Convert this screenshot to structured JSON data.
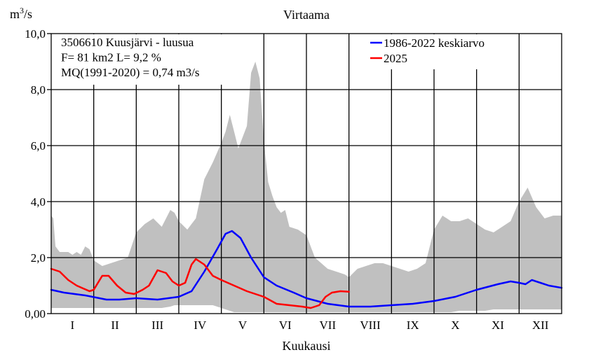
{
  "chart_data": {
    "type": "line",
    "title": "Virtaama",
    "ylabel": "m",
    "ylabel_sup": "3",
    "ylabel_tail": "/s",
    "xlabel": "Kuukausi",
    "ylim": [
      0,
      10
    ],
    "xlim": [
      0,
      12
    ],
    "yticks": [
      "0,00",
      "2,0",
      "4,0",
      "6,0",
      "8,0",
      "10,0"
    ],
    "ytick_values": [
      0,
      2,
      4,
      6,
      8,
      10
    ],
    "months": [
      "I",
      "II",
      "III",
      "IV",
      "V",
      "VI",
      "VII",
      "VIII",
      "IX",
      "X",
      "XI",
      "XII"
    ],
    "grid": true,
    "legend_position": "top-right",
    "info_lines": [
      "3506610 Kuusjärvi - luusua",
      "F=     81 km2 L=  9,2 %",
      "MQ(1991-2020) = 0,74 m3/s"
    ],
    "series": [
      {
        "name": "1986-2022 keskiarvo",
        "color": "#0000ff",
        "x": [
          0,
          0.3,
          0.8,
          1.3,
          1.6,
          2.0,
          2.5,
          3.0,
          3.3,
          3.6,
          3.9,
          4.1,
          4.25,
          4.45,
          4.7,
          5.0,
          5.3,
          5.7,
          6.0,
          6.5,
          7.0,
          7.5,
          8.0,
          8.5,
          9.0,
          9.5,
          10.0,
          10.5,
          10.8,
          11.0,
          11.15,
          11.3,
          11.5,
          11.7,
          12.0
        ],
        "values": [
          0.85,
          0.75,
          0.65,
          0.5,
          0.5,
          0.55,
          0.5,
          0.6,
          0.8,
          1.5,
          2.3,
          2.85,
          2.95,
          2.7,
          2.0,
          1.3,
          1.0,
          0.75,
          0.55,
          0.35,
          0.25,
          0.25,
          0.3,
          0.35,
          0.45,
          0.6,
          0.85,
          1.05,
          1.15,
          1.1,
          1.05,
          1.2,
          1.1,
          1.0,
          0.92
        ]
      },
      {
        "name": "2025",
        "color": "#ff0000",
        "x": [
          0,
          0.2,
          0.4,
          0.6,
          0.75,
          0.9,
          1.0,
          1.1,
          1.2,
          1.35,
          1.55,
          1.75,
          1.95,
          2.15,
          2.3,
          2.5,
          2.7,
          2.85,
          3.0,
          3.15,
          3.3,
          3.4,
          3.6,
          3.8,
          4.0,
          4.3,
          4.6,
          5.0,
          5.3,
          5.6,
          5.9,
          6.1,
          6.3,
          6.45,
          6.6,
          6.8,
          7.0
        ],
        "values": [
          1.6,
          1.5,
          1.2,
          1.0,
          0.9,
          0.8,
          0.85,
          1.1,
          1.35,
          1.35,
          1.0,
          0.75,
          0.7,
          0.85,
          1.0,
          1.55,
          1.45,
          1.15,
          1.0,
          1.1,
          1.75,
          1.95,
          1.75,
          1.35,
          1.2,
          1.0,
          0.8,
          0.6,
          0.35,
          0.3,
          0.25,
          0.2,
          0.3,
          0.6,
          0.75,
          0.8,
          0.78
        ]
      }
    ],
    "range_band": {
      "color": "#c0c0c0",
      "x": [
        0,
        0.05,
        0.1,
        0.2,
        0.3,
        0.4,
        0.5,
        0.6,
        0.7,
        0.8,
        0.9,
        1.0,
        1.2,
        1.4,
        1.6,
        1.8,
        2.0,
        2.2,
        2.4,
        2.6,
        2.8,
        2.9,
        3.0,
        3.2,
        3.4,
        3.6,
        3.8,
        4.0,
        4.1,
        4.2,
        4.3,
        4.4,
        4.5,
        4.6,
        4.7,
        4.8,
        4.9,
        5.0,
        5.1,
        5.2,
        5.3,
        5.4,
        5.5,
        5.6,
        5.8,
        6.0,
        6.2,
        6.5,
        6.7,
        6.9,
        7.0,
        7.2,
        7.4,
        7.6,
        7.8,
        8.0,
        8.2,
        8.4,
        8.6,
        8.8,
        9.0,
        9.2,
        9.4,
        9.6,
        9.8,
        10.0,
        10.2,
        10.4,
        10.6,
        10.8,
        11.0,
        11.2,
        11.4,
        11.6,
        11.8,
        12.0
      ],
      "upper": [
        3.5,
        3.4,
        2.4,
        2.2,
        2.2,
        2.2,
        2.1,
        2.2,
        2.1,
        2.4,
        2.3,
        1.9,
        1.7,
        1.8,
        1.9,
        2.0,
        2.9,
        3.2,
        3.4,
        3.1,
        3.7,
        3.6,
        3.3,
        3.0,
        3.4,
        4.8,
        5.4,
        6.1,
        6.5,
        7.1,
        6.5,
        5.9,
        6.3,
        6.7,
        8.6,
        9.0,
        8.4,
        6.2,
        4.7,
        4.2,
        3.8,
        3.6,
        3.7,
        3.1,
        3.0,
        2.8,
        2.0,
        1.6,
        1.5,
        1.4,
        1.3,
        1.6,
        1.7,
        1.8,
        1.8,
        1.7,
        1.6,
        1.5,
        1.6,
        1.8,
        3.0,
        3.5,
        3.3,
        3.3,
        3.4,
        3.2,
        3.0,
        2.9,
        3.1,
        3.3,
        4.0,
        4.5,
        3.8,
        3.4,
        3.5,
        3.5
      ],
      "lower": [
        0.2,
        0.2,
        0.2,
        0.2,
        0.2,
        0.2,
        0.2,
        0.2,
        0.2,
        0.2,
        0.2,
        0.2,
        0.2,
        0.2,
        0.2,
        0.2,
        0.2,
        0.2,
        0.2,
        0.2,
        0.25,
        0.3,
        0.3,
        0.3,
        0.3,
        0.3,
        0.3,
        0.2,
        0.15,
        0.1,
        0.05,
        0.05,
        0.05,
        0.05,
        0.05,
        0.05,
        0.05,
        0.05,
        0.05,
        0.05,
        0.05,
        0.05,
        0.05,
        0.05,
        0.05,
        0.05,
        0.05,
        0.05,
        0.05,
        0.05,
        0.05,
        0.05,
        0.05,
        0.05,
        0.05,
        0.05,
        0.05,
        0.05,
        0.05,
        0.05,
        0.05,
        0.05,
        0.05,
        0.1,
        0.1,
        0.1,
        0.1,
        0.15,
        0.15,
        0.15,
        0.15,
        0.15,
        0.15,
        0.15,
        0.15,
        0.15
      ]
    }
  }
}
